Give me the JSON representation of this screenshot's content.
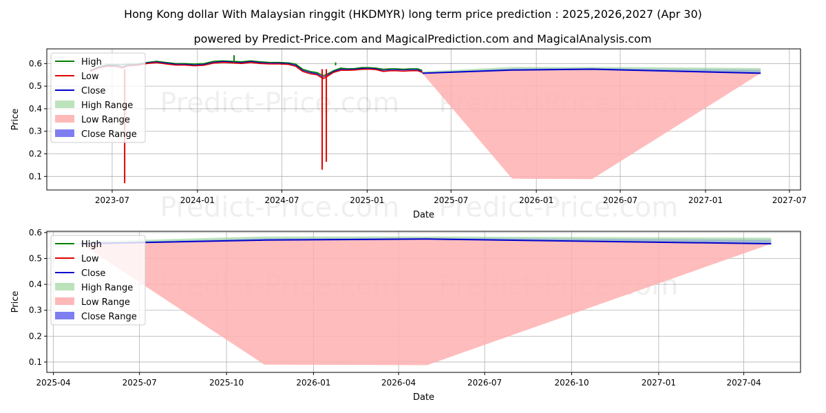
{
  "title": "Hong Kong dollar With Malaysian ringgit (HKDMYR) long term price prediction : 2025,2026,2027 (Apr 30)",
  "subtitle": "powered by Predict-Price.com and MagicalPrediction.com and MagicalAnalysis.com",
  "watermark": "Predict-Price.com",
  "colors": {
    "high": "#008000",
    "low": "#e00000",
    "close": "#0000cc",
    "high_range": "#8fd08f",
    "low_range": "#ffb0b0",
    "close_range": "#7070f0",
    "grid": "#b0b0b0"
  },
  "chart_data": [
    {
      "type": "line",
      "xlabel": "Date",
      "ylabel": "Price",
      "xlim": [
        "2023-02-10",
        "2027-07-25"
      ],
      "ylim": [
        0.04,
        0.665
      ],
      "grid": true,
      "legend_position": "top-left",
      "x_ticks": [
        "2023-07",
        "2024-01",
        "2024-07",
        "2025-01",
        "2025-07",
        "2026-01",
        "2026-07",
        "2027-01",
        "2027-07"
      ],
      "y_ticks": [
        0.1,
        0.2,
        0.3,
        0.4,
        0.5,
        0.6
      ],
      "legend": [
        "High",
        "Low",
        "Close",
        "High Range",
        "Low Range",
        "Close Range"
      ],
      "history": {
        "dates": [
          "2023-05-15",
          "2023-06-01",
          "2023-06-20",
          "2023-07-05",
          "2023-07-15",
          "2023-07-22",
          "2023-08-05",
          "2023-08-25",
          "2023-09-15",
          "2023-10-05",
          "2023-10-25",
          "2023-11-15",
          "2023-12-05",
          "2023-12-25",
          "2024-01-15",
          "2024-02-05",
          "2024-02-25",
          "2024-03-15",
          "2024-04-05",
          "2024-04-25",
          "2024-05-15",
          "2024-06-05",
          "2024-06-25",
          "2024-07-15",
          "2024-07-31",
          "2024-08-15",
          "2024-08-31",
          "2024-09-15",
          "2024-09-28",
          "2024-10-05",
          "2024-10-20",
          "2024-11-05",
          "2024-11-20",
          "2024-12-05",
          "2024-12-20",
          "2025-01-05",
          "2025-01-20",
          "2025-02-05",
          "2025-02-20",
          "2025-03-05",
          "2025-03-20",
          "2025-04-05",
          "2025-04-20",
          "2025-04-30"
        ],
        "high": [
          0.57,
          0.585,
          0.595,
          0.595,
          0.595,
          0.595,
          0.597,
          0.598,
          0.605,
          0.61,
          0.605,
          0.6,
          0.6,
          0.598,
          0.6,
          0.61,
          0.612,
          0.61,
          0.608,
          0.612,
          0.608,
          0.605,
          0.605,
          0.603,
          0.598,
          0.575,
          0.565,
          0.56,
          0.547,
          0.552,
          0.568,
          0.58,
          0.577,
          0.578,
          0.582,
          0.582,
          0.58,
          0.575,
          0.577,
          0.577,
          0.575,
          0.577,
          0.577,
          0.57
        ],
        "low": [
          0.565,
          0.58,
          0.588,
          0.588,
          0.585,
          0.58,
          0.59,
          0.592,
          0.6,
          0.604,
          0.598,
          0.593,
          0.593,
          0.59,
          0.592,
          0.602,
          0.605,
          0.603,
          0.6,
          0.605,
          0.6,
          0.598,
          0.598,
          0.596,
          0.588,
          0.565,
          0.555,
          0.55,
          0.533,
          0.54,
          0.56,
          0.57,
          0.57,
          0.571,
          0.574,
          0.575,
          0.573,
          0.565,
          0.568,
          0.568,
          0.566,
          0.568,
          0.568,
          0.56
        ],
        "close": [
          0.568,
          0.583,
          0.592,
          0.592,
          0.59,
          0.585,
          0.594,
          0.596,
          0.603,
          0.607,
          0.602,
          0.597,
          0.597,
          0.594,
          0.596,
          0.606,
          0.609,
          0.607,
          0.604,
          0.609,
          0.604,
          0.602,
          0.602,
          0.6,
          0.593,
          0.57,
          0.56,
          0.555,
          0.54,
          0.546,
          0.564,
          0.575,
          0.574,
          0.575,
          0.578,
          0.579,
          0.577,
          0.57,
          0.573,
          0.573,
          0.571,
          0.573,
          0.573,
          0.565
        ]
      },
      "spikes": [
        {
          "date": "2023-07-28",
          "low": 0.07
        },
        {
          "date": "2024-03-20",
          "high": 0.637
        },
        {
          "date": "2024-09-26",
          "low": 0.13
        },
        {
          "date": "2024-10-05",
          "low": 0.165
        },
        {
          "date": "2024-10-25",
          "high": 0.592
        }
      ],
      "forecast": {
        "dates": [
          "2025-04-30",
          "2025-11-10",
          "2026-05-01",
          "2027-04-30"
        ],
        "close": [
          0.557,
          0.571,
          0.575,
          0.557
        ],
        "high_range": [
          [
            0.557,
            0.565
          ],
          [
            0.571,
            0.585
          ],
          [
            0.575,
            0.585
          ],
          [
            0.557,
            0.58
          ]
        ],
        "low_range": [
          [
            0.557,
            0.557
          ],
          [
            0.09,
            0.571
          ],
          [
            0.088,
            0.575
          ],
          [
            0.557,
            0.557
          ]
        ],
        "close_range": [
          [
            0.557,
            0.56
          ],
          [
            0.571,
            0.578
          ],
          [
            0.575,
            0.58
          ],
          [
            0.557,
            0.572
          ]
        ]
      }
    },
    {
      "type": "line",
      "xlabel": "Date",
      "ylabel": "Price",
      "xlim": [
        "2025-03-25",
        "2027-05-31"
      ],
      "ylim": [
        0.06,
        0.605
      ],
      "grid": true,
      "legend_position": "top-left",
      "x_ticks": [
        "2025-04",
        "2025-07",
        "2025-10",
        "2026-01",
        "2026-04",
        "2026-07",
        "2026-10",
        "2027-01",
        "2027-04"
      ],
      "y_ticks": [
        0.1,
        0.2,
        0.3,
        0.4,
        0.5,
        0.6
      ],
      "legend": [
        "High",
        "Low",
        "Close",
        "High Range",
        "Low Range",
        "Close Range"
      ],
      "forecast": {
        "dates": [
          "2025-04-30",
          "2025-11-10",
          "2026-05-01",
          "2027-04-30"
        ],
        "close": [
          0.557,
          0.571,
          0.575,
          0.557
        ],
        "high_range": [
          [
            0.557,
            0.565
          ],
          [
            0.571,
            0.585
          ],
          [
            0.575,
            0.585
          ],
          [
            0.557,
            0.58
          ]
        ],
        "low_range": [
          [
            0.557,
            0.557
          ],
          [
            0.09,
            0.571
          ],
          [
            0.088,
            0.575
          ],
          [
            0.557,
            0.557
          ]
        ],
        "close_range": [
          [
            0.557,
            0.56
          ],
          [
            0.571,
            0.578
          ],
          [
            0.575,
            0.58
          ],
          [
            0.557,
            0.572
          ]
        ]
      }
    }
  ]
}
